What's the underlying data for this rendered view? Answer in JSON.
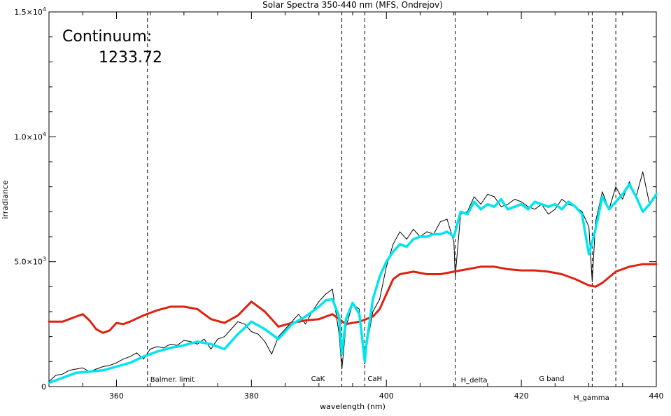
{
  "chart_data": {
    "type": "line",
    "title": "Solar Spectra 350-440 nm (MFS, Ondrejov)",
    "xlabel": "wavelength (nm)",
    "ylabel": "irradiance",
    "xlim": [
      350,
      440
    ],
    "ylim": [
      0,
      15000
    ],
    "x_ticks": [
      360,
      380,
      400,
      420,
      440
    ],
    "x_tick_labels": [
      "360",
      "380",
      "400",
      "420",
      "440"
    ],
    "y_ticks": [
      0,
      5000,
      10000,
      15000
    ],
    "y_tick_labels": [
      {
        "value": 0,
        "base": "0",
        "exp": ""
      },
      {
        "value": 5000,
        "base": "5.0×10",
        "exp": "3"
      },
      {
        "value": 10000,
        "base": "1.0×10",
        "exp": "4"
      },
      {
        "value": 15000,
        "base": "1.5×10",
        "exp": "4"
      }
    ],
    "continuum_label": "Continuum:",
    "continuum_value": "1233.72",
    "spectral_lines": [
      {
        "label": "Balmer. limit",
        "x": 364.6
      },
      {
        "label": "CaK",
        "x": 393.4
      },
      {
        "label": "CaH",
        "x": 396.8
      },
      {
        "label": "H_delta",
        "x": 410.2
      },
      {
        "label": "G band",
        "x": 430.5
      },
      {
        "label": "H_gamma",
        "x": 434.0
      }
    ],
    "series": [
      {
        "role": "raw",
        "color": "#000000",
        "x": [
          350,
          351,
          352,
          353,
          354,
          355,
          356,
          357,
          358,
          359,
          360,
          361,
          362,
          363,
          364,
          365,
          366,
          367,
          368,
          369,
          370,
          371,
          372,
          373,
          374,
          375,
          376,
          377,
          378,
          379,
          380,
          381,
          382,
          383,
          384,
          385,
          386,
          387,
          388,
          389,
          390,
          391,
          392,
          393,
          393.4,
          394,
          395,
          396,
          396.8,
          397,
          398,
          399,
          400,
          401,
          402,
          403,
          404,
          405,
          406,
          407,
          408,
          409,
          410,
          410.2,
          411,
          412,
          413,
          414,
          415,
          416,
          417,
          418,
          419,
          420,
          421,
          422,
          423,
          424,
          425,
          426,
          427,
          428,
          429,
          430,
          430.5,
          431,
          432,
          433,
          434,
          435,
          436,
          437,
          438,
          439,
          440
        ],
        "y": [
          200,
          450,
          500,
          650,
          700,
          750,
          600,
          700,
          800,
          850,
          950,
          1100,
          1200,
          1350,
          1100,
          1500,
          1600,
          1550,
          1700,
          1650,
          1850,
          1800,
          1700,
          1900,
          1500,
          1900,
          2000,
          2300,
          2600,
          2500,
          2200,
          2100,
          1800,
          1300,
          2000,
          2300,
          2600,
          2900,
          2500,
          3000,
          3400,
          3700,
          3900,
          2100,
          700,
          2400,
          3300,
          3100,
          900,
          1500,
          3000,
          3500,
          4800,
          5700,
          6200,
          5900,
          6300,
          6000,
          6200,
          6100,
          6600,
          6700,
          5800,
          4400,
          6900,
          7000,
          7600,
          7300,
          7700,
          7600,
          7200,
          7300,
          7500,
          7400,
          7200,
          7100,
          7300,
          6900,
          7100,
          7500,
          7300,
          7200,
          7000,
          6400,
          4200,
          6600,
          7800,
          7100,
          8000,
          7500,
          8200,
          7600,
          8600,
          7300,
          7700
        ]
      },
      {
        "role": "smoothed",
        "color": "#00e5ee",
        "x": [
          350,
          352,
          354,
          356,
          358,
          360,
          362,
          364,
          366,
          368,
          370,
          372,
          374,
          376,
          378,
          380,
          382,
          384,
          386,
          388,
          390,
          391,
          392,
          393,
          393.4,
          394,
          395,
          396,
          396.8,
          397,
          398,
          399,
          400,
          401,
          402,
          403,
          404,
          405,
          406,
          407,
          408,
          409,
          410,
          411,
          412,
          413,
          414,
          415,
          416,
          417,
          418,
          419,
          420,
          421,
          422,
          423,
          424,
          425,
          426,
          427,
          428,
          429,
          430,
          431,
          432,
          433,
          434,
          435,
          436,
          437,
          438,
          439,
          440
        ],
        "y": [
          150,
          350,
          550,
          600,
          650,
          800,
          950,
          1200,
          1400,
          1550,
          1650,
          1800,
          1700,
          1500,
          2100,
          2600,
          2300,
          1900,
          2500,
          2800,
          3200,
          3450,
          3500,
          2800,
          1300,
          2700,
          3350,
          2900,
          1000,
          1600,
          3500,
          4400,
          5000,
          5400,
          5700,
          5600,
          5900,
          6000,
          6000,
          6100,
          6100,
          6200,
          6000,
          7000,
          6900,
          7400,
          7100,
          7300,
          7200,
          7500,
          7100,
          7200,
          7300,
          7100,
          7400,
          7300,
          7200,
          7300,
          7100,
          7400,
          7200,
          6900,
          5300,
          6300,
          7600,
          7100,
          7400,
          7700,
          8100,
          7600,
          7000,
          7300,
          7700
        ]
      },
      {
        "role": "continuum",
        "color": "#dd2211",
        "x": [
          350,
          352,
          354,
          355,
          356,
          357,
          358,
          359,
          360,
          361,
          362,
          364,
          366,
          368,
          370,
          372,
          374,
          376,
          378,
          380,
          382,
          383,
          384,
          386,
          388,
          390,
          392,
          394,
          396,
          398,
          399,
          400,
          401,
          402,
          404,
          406,
          408,
          410,
          412,
          414,
          416,
          418,
          420,
          422,
          424,
          426,
          428,
          430,
          431,
          432,
          434,
          436,
          438,
          440
        ],
        "y": [
          2600,
          2600,
          2800,
          2900,
          2650,
          2300,
          2150,
          2250,
          2550,
          2500,
          2600,
          2850,
          3050,
          3200,
          3200,
          3100,
          2700,
          2550,
          2850,
          3400,
          3000,
          2700,
          2400,
          2550,
          2650,
          2700,
          2900,
          2500,
          2600,
          2800,
          3100,
          3700,
          4300,
          4500,
          4600,
          4500,
          4500,
          4600,
          4700,
          4800,
          4800,
          4700,
          4650,
          4650,
          4600,
          4500,
          4300,
          4050,
          4000,
          4150,
          4600,
          4800,
          4900,
          4900
        ]
      }
    ],
    "grid": false,
    "legend": "none"
  }
}
